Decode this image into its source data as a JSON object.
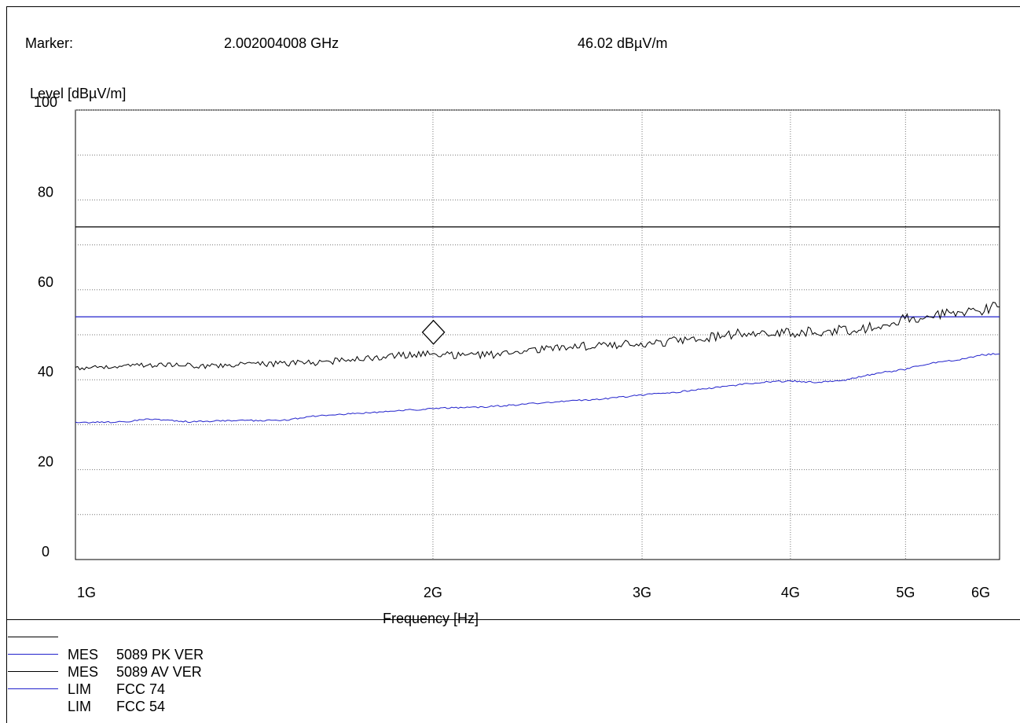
{
  "marker": {
    "label": "Marker:",
    "frequency": "2.002004008 GHz",
    "level": "46.02 dBµV/m"
  },
  "chart_data": {
    "type": "line",
    "xlabel": "Frequency [Hz]",
    "ylabel": "Level [dBµV/m]",
    "x_scale": "log",
    "xlim": [
      1000000000,
      6000000000
    ],
    "ylim": [
      0,
      100
    ],
    "x_ticks": [
      {
        "value": 1000000000,
        "label": "1G"
      },
      {
        "value": 2000000000,
        "label": "2G"
      },
      {
        "value": 3000000000,
        "label": "3G"
      },
      {
        "value": 4000000000,
        "label": "4G"
      },
      {
        "value": 5000000000,
        "label": "5G"
      },
      {
        "value": 6000000000,
        "label": "6G"
      }
    ],
    "y_ticks": [
      {
        "value": 0,
        "label": "0"
      },
      {
        "value": 20,
        "label": "20"
      },
      {
        "value": 40,
        "label": "40"
      },
      {
        "value": 60,
        "label": "60"
      },
      {
        "value": 80,
        "label": "80"
      },
      {
        "value": 100,
        "label": "100"
      }
    ],
    "grid": true,
    "limit_lines": [
      {
        "name": "FCC 74",
        "value": 74,
        "color": "#000000"
      },
      {
        "name": "FCC 54",
        "value": 54,
        "color": "#2222cc"
      }
    ],
    "series": [
      {
        "name": "5089 PK VER",
        "color": "#000000",
        "points": [
          [
            1000000000,
            42.5
          ],
          [
            1100000000,
            43.2
          ],
          [
            1200000000,
            43.3
          ],
          [
            1300000000,
            43.0
          ],
          [
            1400000000,
            43.5
          ],
          [
            1500000000,
            43.6
          ],
          [
            1600000000,
            43.8
          ],
          [
            1700000000,
            44.5
          ],
          [
            1800000000,
            45.0
          ],
          [
            1900000000,
            45.5
          ],
          [
            2000000000,
            46.0
          ],
          [
            2100000000,
            45.3
          ],
          [
            2200000000,
            45.4
          ],
          [
            2300000000,
            45.8
          ],
          [
            2400000000,
            46.2
          ],
          [
            2500000000,
            46.8
          ],
          [
            2600000000,
            47.2
          ],
          [
            2800000000,
            47.8
          ],
          [
            3000000000,
            48.0
          ],
          [
            3200000000,
            48.6
          ],
          [
            3400000000,
            49.3
          ],
          [
            3600000000,
            50.2
          ],
          [
            3800000000,
            50.8
          ],
          [
            4000000000,
            50.5
          ],
          [
            4200000000,
            50.7
          ],
          [
            4400000000,
            51.0
          ],
          [
            4600000000,
            51.3
          ],
          [
            4800000000,
            52.3
          ],
          [
            5000000000,
            53.5
          ],
          [
            5200000000,
            54.0
          ],
          [
            5400000000,
            54.6
          ],
          [
            5600000000,
            55.0
          ],
          [
            5800000000,
            55.5
          ],
          [
            6000000000,
            57.0
          ]
        ]
      },
      {
        "name": "5089 AV VER",
        "color": "#2222cc",
        "points": [
          [
            1000000000,
            30.5
          ],
          [
            1100000000,
            30.6
          ],
          [
            1150000000,
            31.3
          ],
          [
            1250000000,
            30.6
          ],
          [
            1350000000,
            30.9
          ],
          [
            1500000000,
            31.0
          ],
          [
            1600000000,
            32.0
          ],
          [
            1700000000,
            32.4
          ],
          [
            1800000000,
            32.8
          ],
          [
            1900000000,
            33.2
          ],
          [
            2000000000,
            33.6
          ],
          [
            2200000000,
            33.9
          ],
          [
            2400000000,
            34.6
          ],
          [
            2600000000,
            35.3
          ],
          [
            2800000000,
            35.8
          ],
          [
            3000000000,
            36.6
          ],
          [
            3200000000,
            37.2
          ],
          [
            3400000000,
            38.0
          ],
          [
            3600000000,
            38.8
          ],
          [
            3800000000,
            39.5
          ],
          [
            4000000000,
            39.7
          ],
          [
            4200000000,
            39.4
          ],
          [
            4400000000,
            39.7
          ],
          [
            4600000000,
            40.8
          ],
          [
            4800000000,
            41.7
          ],
          [
            5000000000,
            42.3
          ],
          [
            5200000000,
            43.5
          ],
          [
            5400000000,
            44.0
          ],
          [
            5600000000,
            44.7
          ],
          [
            5800000000,
            45.5
          ],
          [
            6000000000,
            45.8
          ]
        ]
      }
    ],
    "marker_point": {
      "x": 2002004008,
      "y": 46.02
    }
  },
  "legend": {
    "entries": [
      {
        "prefix": "",
        "name": "",
        "color": "#000000",
        "has_line": true
      },
      {
        "prefix": "MES",
        "name": "5089 PK VER",
        "color": "#2222cc",
        "has_line": true
      },
      {
        "prefix": "MES",
        "name": "5089 AV VER",
        "color": "#000000",
        "has_line": true
      },
      {
        "prefix": "LIM",
        "name": "FCC 74",
        "color": "#2222cc",
        "has_line": true
      },
      {
        "prefix": "LIM",
        "name": "FCC 54",
        "color": "",
        "has_line": false
      }
    ]
  }
}
